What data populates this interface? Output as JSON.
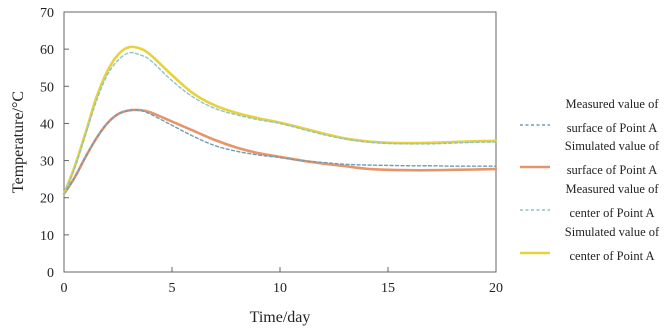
{
  "chart_data": {
    "type": "line",
    "title": "",
    "xlabel": "Time/day",
    "ylabel": "Temperature/°C",
    "xlim": [
      0,
      20
    ],
    "ylim": [
      0,
      70
    ],
    "xticks": [
      0,
      5,
      10,
      15,
      20
    ],
    "yticks": [
      0,
      10,
      20,
      30,
      40,
      50,
      60,
      70
    ],
    "grid": false,
    "legend_position": "right",
    "series": [
      {
        "name": [
          "Measured value of",
          "surface of Point A"
        ],
        "style": "dashed",
        "color": "#6a9fb5",
        "x": [
          0,
          0.5,
          1,
          1.5,
          2,
          2.5,
          3,
          3.5,
          4,
          5,
          6,
          7,
          8,
          9,
          10,
          11,
          12,
          13,
          14,
          15,
          16,
          17,
          18,
          19,
          20
        ],
        "y": [
          21,
          25.5,
          31,
          36,
          40,
          42.5,
          43.5,
          43.5,
          42.5,
          39.5,
          36.5,
          34,
          32.5,
          31.5,
          30.8,
          30,
          29.5,
          29,
          28.8,
          28.7,
          28.6,
          28.6,
          28.5,
          28.5,
          28.5
        ]
      },
      {
        "name": [
          "Simulated value of",
          "surface of Point A"
        ],
        "style": "solid",
        "color": "#e8946a",
        "x": [
          0,
          0.5,
          1,
          1.5,
          2,
          2.5,
          3,
          3.5,
          4,
          5,
          6,
          7,
          8,
          9,
          10,
          11,
          12,
          13,
          14,
          15,
          16,
          17,
          18,
          19,
          20
        ],
        "y": [
          21,
          25.5,
          31,
          36,
          40,
          42.5,
          43.5,
          43.6,
          43,
          40.5,
          38,
          35.5,
          33.5,
          32,
          31,
          30,
          29.2,
          28.5,
          27.8,
          27.5,
          27.4,
          27.4,
          27.5,
          27.6,
          27.7
        ]
      },
      {
        "name": [
          "Measured value of",
          "center of Point A"
        ],
        "style": "dashed",
        "color": "#8fc1cc",
        "x": [
          0,
          0.5,
          1,
          1.5,
          2,
          2.5,
          3,
          3.5,
          4,
          5,
          6,
          7,
          8,
          9,
          10,
          11,
          12,
          13,
          14,
          15,
          16,
          17,
          18,
          19,
          20
        ],
        "y": [
          21,
          28,
          37,
          46,
          53,
          57,
          59,
          58.5,
          57,
          51.5,
          47,
          44,
          42.3,
          41,
          40,
          38.5,
          37,
          35.8,
          35,
          34.6,
          34.5,
          34.5,
          34.7,
          34.9,
          35
        ]
      },
      {
        "name": [
          "Simulated value of",
          "center of Point A"
        ],
        "style": "solid",
        "color": "#e6d23a",
        "x": [
          0,
          0.5,
          1,
          1.5,
          2,
          2.5,
          3,
          3.5,
          4,
          5,
          6,
          7,
          8,
          9,
          10,
          11,
          12,
          13,
          14,
          15,
          16,
          17,
          18,
          19,
          20
        ],
        "y": [
          21,
          28.5,
          37.5,
          47,
          54,
          58.5,
          60.5,
          60.2,
          58.5,
          53,
          48,
          44.8,
          42.8,
          41.4,
          40.2,
          38.8,
          37.3,
          36,
          35.2,
          34.8,
          34.7,
          34.8,
          35,
          35.2,
          35.3
        ]
      }
    ]
  }
}
